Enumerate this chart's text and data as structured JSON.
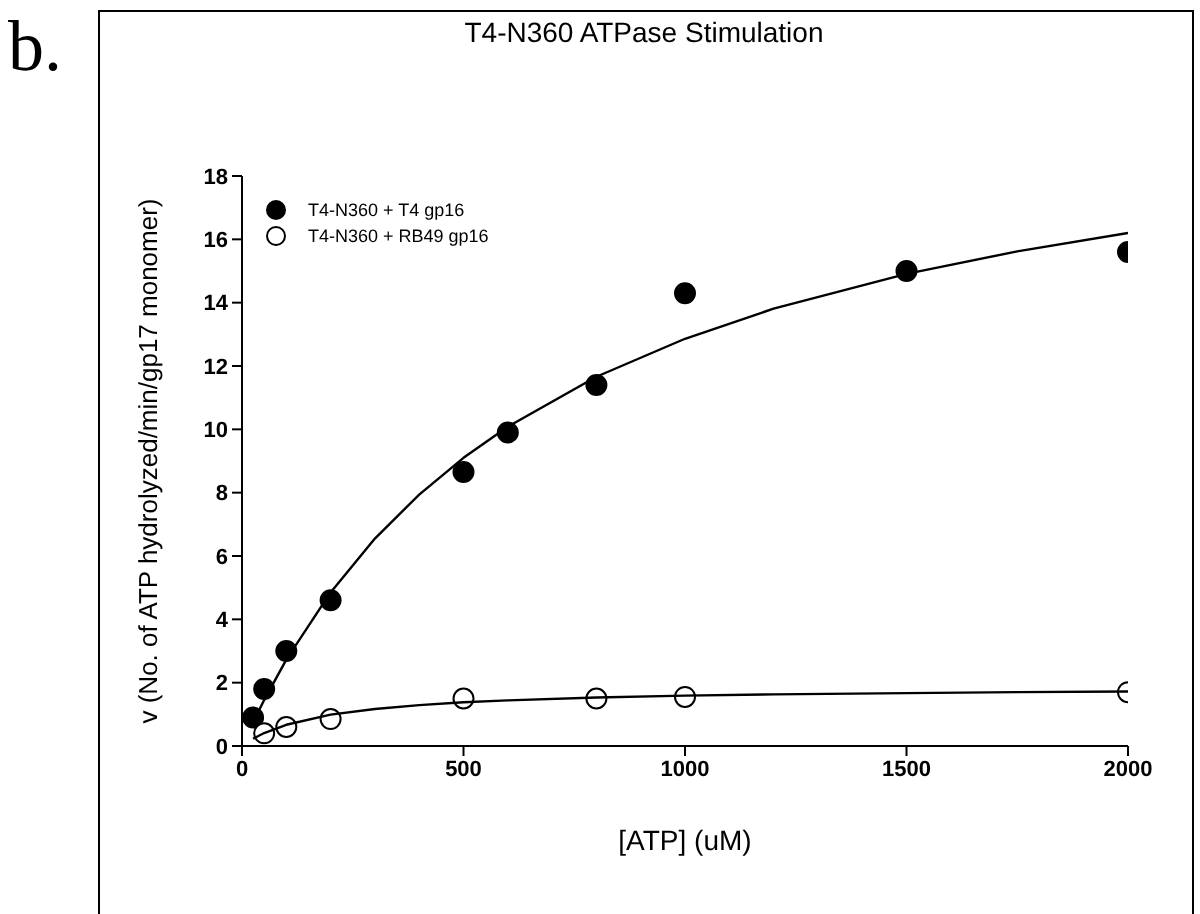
{
  "chart_data": {
    "type": "scatter",
    "title": "T4-N360 ATPase Stimulation",
    "xlabel": "[ATP] (uM)",
    "ylabel": "v (No. of ATP hydrolyzed/min/gp17 monomer)",
    "annotations": [
      "b."
    ],
    "xlim": [
      0,
      2000
    ],
    "xticks": [
      0,
      500,
      1000,
      1500,
      2000
    ],
    "ylim": [
      0,
      18
    ],
    "yticks": [
      0,
      2,
      4,
      6,
      8,
      10,
      12,
      14,
      16,
      18
    ],
    "legend": "top left",
    "series": [
      {
        "name": "T4-N360 + T4 gp16",
        "color": "#000000",
        "marker": "circle",
        "x": [
          25,
          50,
          100,
          200,
          500,
          600,
          800,
          1000,
          1500,
          2000
        ],
        "values": [
          0.9,
          1.8,
          3.0,
          4.6,
          8.65,
          9.9,
          11.4,
          14.3,
          15.0,
          15.6
        ]
      },
      {
        "name": "T4-N360 + RB49 gp16",
        "color": "#ffffff",
        "marker": "circle",
        "x": [
          50,
          100,
          200,
          500,
          800,
          1000,
          2000
        ],
        "values": [
          0.4,
          0.6,
          0.85,
          1.5,
          1.5,
          1.55,
          1.7
        ]
      },
      {
        "type": "line",
        "color": "#000000",
        "x": [
          25,
          50,
          100,
          200,
          300,
          400,
          500,
          600,
          800,
          1000,
          1200,
          1500,
          1750,
          2000
        ],
        "values": [
          0.75,
          1.45,
          2.73,
          4.85,
          6.55,
          7.94,
          9.1,
          10.08,
          11.66,
          12.86,
          13.81,
          14.91,
          15.62,
          16.2
        ]
      },
      {
        "type": "line",
        "color": "#000000",
        "x": [
          25,
          50,
          100,
          200,
          300,
          400,
          500,
          600,
          800,
          1000,
          1200,
          1500,
          1750,
          2000
        ],
        "values": [
          0.23,
          0.41,
          0.67,
          0.99,
          1.17,
          1.29,
          1.38,
          1.44,
          1.53,
          1.59,
          1.63,
          1.67,
          1.7,
          1.72
        ]
      }
    ]
  }
}
